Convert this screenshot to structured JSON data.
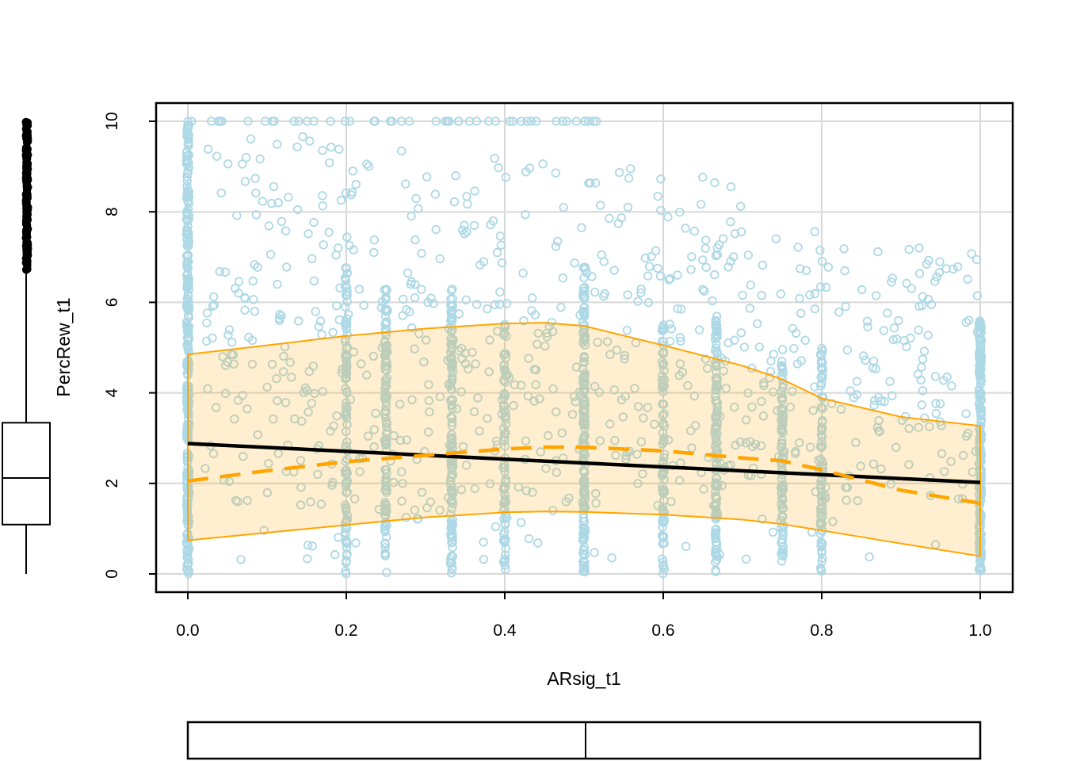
{
  "chart_data": {
    "type": "scatter",
    "title": "",
    "xlabel": "ARsig_t1",
    "ylabel": "PercRew_t1",
    "xlim": [
      0,
      1
    ],
    "ylim": [
      0,
      10
    ],
    "grid": true,
    "legend": "none",
    "x_ticks": {
      "labels": [
        "0.0",
        "0.2",
        "0.4",
        "0.6",
        "0.8",
        "1.0"
      ],
      "values": [
        0.0,
        0.2,
        0.4,
        0.6,
        0.8,
        1.0
      ]
    },
    "y_ticks": {
      "labels": [
        "0",
        "2",
        "4",
        "6",
        "8",
        "10"
      ],
      "values": [
        0,
        2,
        4,
        6,
        8,
        10
      ]
    },
    "colors": {
      "points": "#ADD8E6",
      "band_fill": "rgba(255,165,0,0.19)",
      "band_line": "#FFA500",
      "loess_line": "#FFA500",
      "regression_line": "#000000",
      "grid": "#D8D8D8",
      "frame": "#000000",
      "boxplot": "#000000"
    },
    "regression_line": {
      "style": "solid",
      "x": [
        0,
        1
      ],
      "y": [
        2.88,
        2.02
      ]
    },
    "loess_line": {
      "style": "dashed",
      "x": [
        0,
        0.1,
        0.2,
        0.3,
        0.4,
        0.45,
        0.5,
        0.6,
        0.7,
        0.75,
        0.8,
        0.9,
        1.0
      ],
      "y": [
        2.05,
        2.28,
        2.48,
        2.62,
        2.76,
        2.8,
        2.8,
        2.72,
        2.56,
        2.5,
        2.3,
        1.85,
        1.56
      ]
    },
    "confidence_band": {
      "x": [
        0,
        0.1,
        0.2,
        0.3,
        0.4,
        0.45,
        0.5,
        0.6,
        0.7,
        0.75,
        0.8,
        0.9,
        1.0
      ],
      "upper": [
        4.85,
        5.05,
        5.26,
        5.42,
        5.53,
        5.55,
        5.48,
        5.05,
        4.6,
        4.3,
        3.88,
        3.47,
        3.27
      ],
      "lower": [
        0.74,
        0.91,
        1.08,
        1.25,
        1.36,
        1.38,
        1.37,
        1.31,
        1.2,
        1.1,
        0.96,
        0.67,
        0.39
      ]
    },
    "scatter": {
      "seed": 20240617,
      "point_jitter": 0.0015,
      "stripes": [
        {
          "x": 0.0,
          "y_min": 0,
          "y_max": 10.0,
          "n": 290
        },
        {
          "x": 0.2,
          "y_min": 0,
          "y_max": 6.9,
          "n": 100
        },
        {
          "x": 0.25,
          "y_min": 0,
          "y_max": 6.3,
          "n": 110
        },
        {
          "x": 0.333,
          "y_min": 0,
          "y_max": 6.3,
          "n": 130
        },
        {
          "x": 0.4,
          "y_min": 0,
          "y_max": 5.6,
          "n": 80
        },
        {
          "x": 0.5,
          "y_min": 0,
          "y_max": 6.8,
          "n": 170
        },
        {
          "x": 0.6,
          "y_min": 0,
          "y_max": 5.5,
          "n": 80
        },
        {
          "x": 0.667,
          "y_min": 0,
          "y_max": 5.7,
          "n": 130
        },
        {
          "x": 0.75,
          "y_min": 0,
          "y_max": 5.0,
          "n": 90
        },
        {
          "x": 0.8,
          "y_min": 0,
          "y_max": 5.1,
          "n": 80
        },
        {
          "x": 1.0,
          "y_min": 0,
          "y_max": 5.6,
          "n": 210
        }
      ],
      "top_row": {
        "y": 10,
        "x_min": 0.0,
        "x_max": 0.52,
        "n": 48
      },
      "cloud": [
        {
          "x_min": 0.02,
          "x_max": 0.3,
          "y_min": 6.3,
          "y_max": 9.7,
          "n": 75
        },
        {
          "x_min": 0.3,
          "x_max": 0.55,
          "y_min": 6.4,
          "y_max": 9.3,
          "n": 50
        },
        {
          "x_min": 0.02,
          "x_max": 0.55,
          "y_min": 3.6,
          "y_max": 6.3,
          "n": 170
        },
        {
          "x_min": 0.02,
          "x_max": 0.55,
          "y_min": 1.4,
          "y_max": 3.6,
          "n": 110
        },
        {
          "x_min": 0.55,
          "x_max": 0.8,
          "y_min": 2.2,
          "y_max": 7.6,
          "n": 150
        },
        {
          "x_min": 0.55,
          "x_max": 0.72,
          "y_min": 7.6,
          "y_max": 9.0,
          "n": 15
        },
        {
          "x_min": 0.8,
          "x_max": 1.0,
          "y_min": 2.9,
          "y_max": 7.2,
          "n": 100
        },
        {
          "x_min": 0.05,
          "x_max": 0.98,
          "y_min": 0.3,
          "y_max": 1.4,
          "n": 30
        },
        {
          "x_min": 0.55,
          "x_max": 1.0,
          "y_min": 1.4,
          "y_max": 2.9,
          "n": 45
        }
      ]
    },
    "marginal_boxplot_y": {
      "orientation": "vertical",
      "whisker_low": 0.0,
      "q1": 1.09,
      "median": 2.12,
      "q3": 3.34,
      "whisker_high": 6.64,
      "outliers": {
        "y_min": 6.72,
        "y_max": 10.0,
        "n": 150
      }
    },
    "marginal_boxplot_x": {
      "orientation": "horizontal",
      "q1": 0.0,
      "median": 0.502,
      "q3": 1.0
    }
  }
}
